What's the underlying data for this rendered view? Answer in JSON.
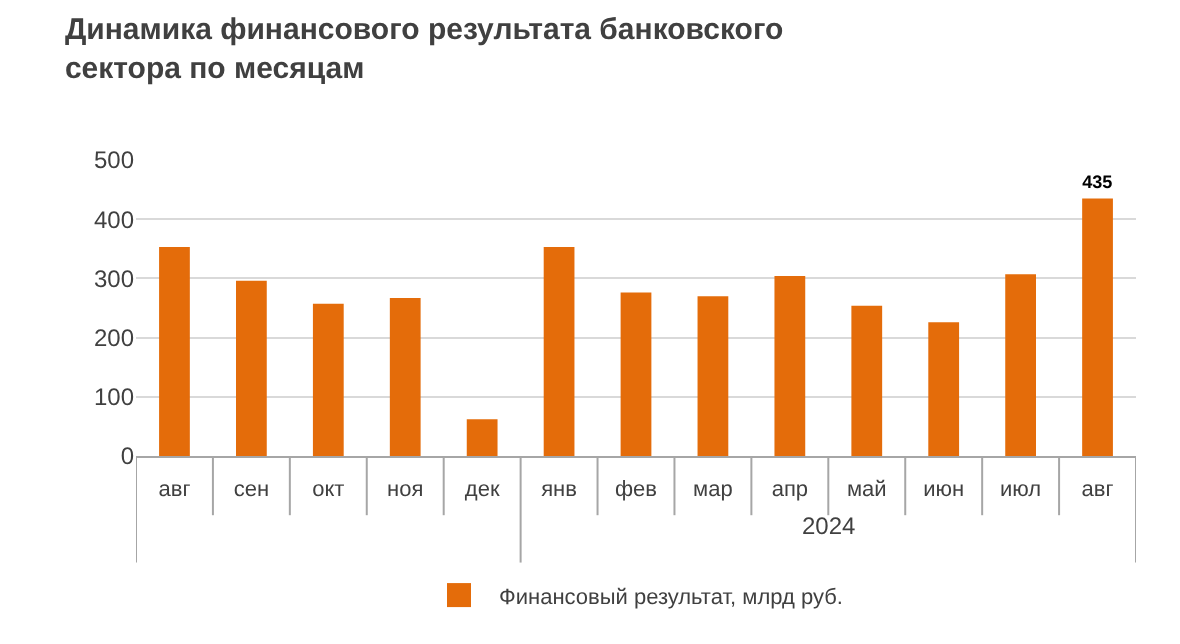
{
  "chart_data": {
    "type": "bar",
    "title": "Динамика финансового результата банковского\nсектора по месяцам",
    "categories": [
      "авг",
      "сен",
      "окт",
      "ноя",
      "дек",
      "янв",
      "фев",
      "мар",
      "апр",
      "май",
      "июн",
      "июл",
      "авг"
    ],
    "series": [
      {
        "name": "Финансовый результат, млрд руб.",
        "color": "#e46c0a",
        "values": [
          353,
          296,
          257,
          267,
          62,
          353,
          276,
          270,
          304,
          254,
          226,
          307,
          435
        ],
        "value_labels": [
          null,
          null,
          null,
          null,
          null,
          null,
          null,
          null,
          null,
          null,
          null,
          null,
          "435"
        ]
      }
    ],
    "annotations": [
      "2024"
    ],
    "ylim": [
      0,
      500
    ],
    "yticks": [
      0,
      100,
      200,
      300,
      400,
      500
    ],
    "grid": "y",
    "legend": "bottom"
  }
}
